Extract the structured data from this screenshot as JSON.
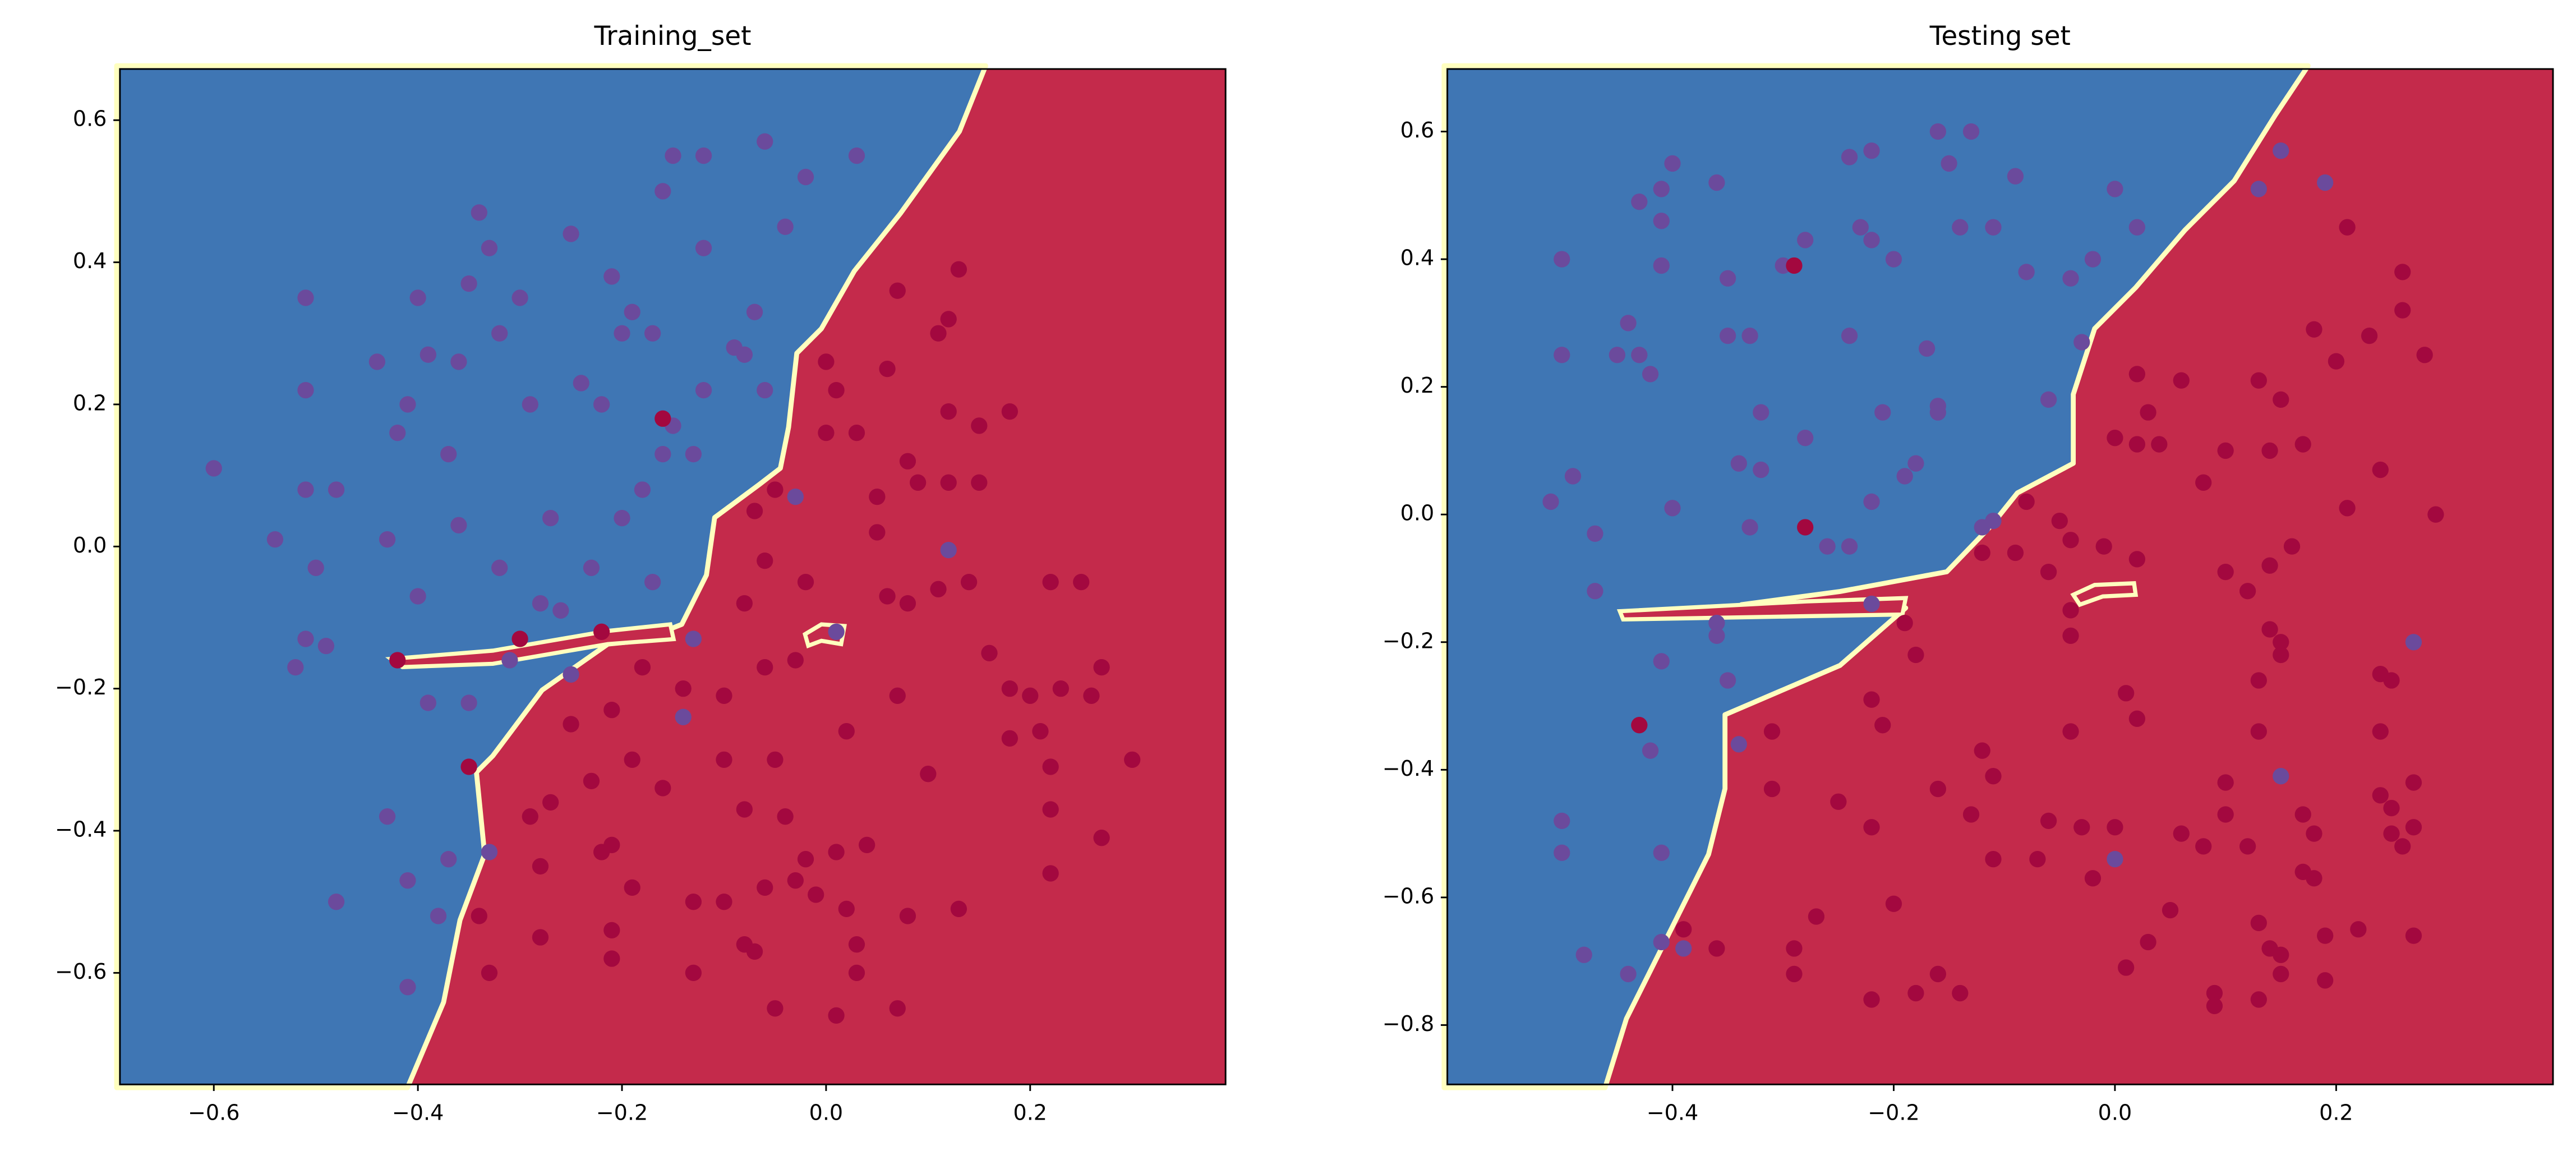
{
  "chart_data": [
    {
      "type": "scatter",
      "title": "Training_set",
      "xlim": [
        -0.692,
        0.3915
      ],
      "ylim": [
        -0.757,
        0.672
      ],
      "xticks": [
        {
          "value": -0.6,
          "label": "−0.6"
        },
        {
          "value": -0.4,
          "label": "−0.4"
        },
        {
          "value": -0.2,
          "label": "−0.2"
        },
        {
          "value": 0,
          "label": "0.0"
        },
        0.2
      ],
      "yticks": [
        {
          "value": -0.6,
          "label": "−0.6"
        },
        {
          "value": -0.4,
          "label": "−0.4"
        },
        {
          "value": -0.2,
          "label": "−0.2"
        },
        {
          "value": 0,
          "label": "0.0"
        },
        0.2,
        0.4,
        0.6
      ],
      "series": [
        {
          "color": "#6b4a9c",
          "x": [
            -0.6,
            -0.54,
            -0.52,
            -0.51,
            -0.49,
            -0.5,
            -0.51,
            -0.48,
            -0.51,
            -0.51,
            -0.43,
            -0.4,
            -0.42,
            -0.41,
            -0.4,
            -0.39,
            -0.37,
            -0.36,
            -0.35,
            -0.34,
            -0.33,
            -0.32,
            -0.3,
            -0.29,
            -0.27,
            -0.28,
            -0.26,
            -0.24,
            -0.22,
            -0.21,
            -0.2,
            -0.19,
            -0.17,
            -0.18,
            -0.16,
            -0.15,
            -0.13,
            -0.12,
            -0.09,
            -0.08,
            -0.06,
            -0.07,
            -0.06,
            -0.04,
            -0.02,
            0.03,
            -0.03,
            0.01,
            0.12,
            -0.13,
            -0.14,
            -0.33,
            -0.35,
            -0.39,
            -0.43,
            -0.41,
            -0.38,
            -0.48,
            -0.41,
            -0.37,
            -0.31,
            -0.25,
            -0.17,
            -0.2,
            -0.23,
            -0.15,
            -0.12,
            -0.16,
            -0.12,
            -0.25,
            -0.44,
            -0.36,
            -0.32
          ],
          "values": [
            0.11,
            0.01,
            -0.17,
            -0.13,
            -0.14,
            -0.03,
            0.08,
            0.08,
            0.22,
            0.35,
            0.01,
            -0.07,
            0.16,
            0.2,
            0.35,
            0.27,
            0.13,
            0.26,
            0.37,
            0.47,
            0.42,
            0.3,
            0.35,
            0.2,
            0.04,
            -0.08,
            -0.09,
            0.23,
            0.2,
            0.38,
            0.3,
            0.33,
            0.3,
            0.08,
            0.13,
            0.17,
            0.13,
            0.22,
            0.28,
            0.27,
            0.22,
            0.33,
            0.57,
            0.45,
            0.52,
            0.55,
            0.07,
            -0.12,
            -0.005,
            -0.13,
            -0.24,
            -0.43,
            -0.22,
            -0.22,
            -0.38,
            -0.47,
            -0.52,
            -0.5,
            -0.62,
            -0.44,
            -0.16,
            -0.18,
            -0.05,
            0.04,
            -0.03,
            0.55,
            0.55,
            0.5,
            0.42,
            0.44,
            0.26,
            0.03,
            -0.03
          ]
        },
        {
          "color": "#a3083f",
          "x": [
            -0.42,
            -0.3,
            -0.22,
            -0.16,
            -0.05,
            -0.35,
            0.0,
            0.07,
            0.13,
            0.12,
            0.11,
            0.06,
            0.01,
            0.03,
            0.0,
            0.08,
            0.12,
            0.15,
            0.18,
            0.15,
            0.12,
            0.09,
            0.05,
            0.05,
            0.11,
            0.08,
            0.06,
            -0.02,
            -0.07,
            -0.06,
            -0.08,
            -0.03,
            0.02,
            0.07,
            -0.05,
            -0.06,
            -0.1,
            -0.14,
            -0.18,
            -0.21,
            -0.25,
            -0.23,
            -0.27,
            -0.19,
            -0.16,
            -0.1,
            -0.08,
            -0.04,
            -0.02,
            0.01,
            0.04,
            0.1,
            0.16,
            0.18,
            0.2,
            0.21,
            0.22,
            0.23,
            0.26,
            0.27,
            0.3,
            0.25,
            0.22,
            0.14,
            0.18,
            0.22,
            0.27,
            0.22,
            0.13,
            0.08,
            0.03,
            0.02,
            -0.03,
            -0.06,
            -0.08,
            -0.1,
            -0.13,
            -0.13,
            -0.21,
            -0.22,
            -0.21,
            -0.19,
            -0.21,
            -0.28,
            -0.29,
            -0.33,
            -0.34,
            -0.28,
            -0.05,
            0.01,
            0.07,
            -0.01,
            0.03,
            -0.07
          ],
          "values": [
            -0.16,
            -0.13,
            -0.12,
            0.18,
            0.08,
            -0.31,
            0.26,
            0.36,
            0.39,
            0.32,
            0.3,
            0.25,
            0.22,
            0.16,
            0.16,
            0.12,
            0.19,
            0.17,
            0.19,
            0.09,
            0.09,
            0.09,
            0.07,
            0.02,
            -0.06,
            -0.08,
            -0.07,
            -0.05,
            0.05,
            -0.02,
            -0.08,
            -0.16,
            -0.26,
            -0.21,
            -0.3,
            -0.17,
            -0.21,
            -0.2,
            -0.17,
            -0.23,
            -0.25,
            -0.33,
            -0.36,
            -0.3,
            -0.34,
            -0.3,
            -0.37,
            -0.38,
            -0.44,
            -0.43,
            -0.42,
            -0.32,
            -0.15,
            -0.2,
            -0.21,
            -0.26,
            -0.31,
            -0.2,
            -0.21,
            -0.17,
            -0.3,
            -0.05,
            -0.05,
            -0.05,
            -0.27,
            -0.37,
            -0.41,
            -0.46,
            -0.51,
            -0.52,
            -0.56,
            -0.51,
            -0.47,
            -0.48,
            -0.56,
            -0.5,
            -0.5,
            -0.6,
            -0.42,
            -0.43,
            -0.54,
            -0.48,
            -0.58,
            -0.45,
            -0.38,
            -0.6,
            -0.52,
            -0.55,
            -0.65,
            -0.66,
            -0.65,
            -0.49,
            -0.6,
            -0.57
          ]
        }
      ]
    },
    {
      "type": "scatter",
      "title": "Testing set",
      "xlim": [
        -0.6035,
        0.396
      ],
      "ylim": [
        -0.893,
        0.698
      ],
      "xticks": [
        {
          "value": -0.4,
          "label": "−0.4"
        },
        {
          "value": -0.2,
          "label": "−0.2"
        },
        {
          "value": 0,
          "label": "0.0"
        },
        0.2
      ],
      "yticks": [
        {
          "value": -0.8,
          "label": "−0.8"
        },
        {
          "value": -0.6,
          "label": "−0.6"
        },
        {
          "value": -0.4,
          "label": "−0.4"
        },
        {
          "value": -0.2,
          "label": "−0.2"
        },
        {
          "value": 0,
          "label": "0.0"
        },
        0.2,
        0.4,
        0.6
      ],
      "series": [
        {
          "color": "#6b4a9c",
          "x": [
            -0.5,
            -0.5,
            -0.49,
            -0.51,
            -0.47,
            -0.47,
            -0.44,
            -0.45,
            -0.43,
            -0.42,
            -0.43,
            -0.41,
            -0.41,
            -0.41,
            -0.4,
            -0.36,
            -0.35,
            -0.35,
            -0.33,
            -0.32,
            -0.34,
            -0.32,
            -0.33,
            -0.3,
            -0.28,
            -0.24,
            -0.22,
            -0.23,
            -0.22,
            -0.2,
            -0.24,
            -0.28,
            -0.26,
            -0.24,
            -0.22,
            -0.19,
            -0.21,
            -0.18,
            -0.16,
            -0.16,
            -0.17,
            -0.14,
            -0.11,
            -0.15,
            -0.16,
            -0.13,
            -0.09,
            -0.08,
            -0.04,
            -0.02,
            0.0,
            0.02,
            -0.03,
            -0.06,
            -0.12,
            -0.11,
            -0.4,
            -0.41,
            -0.36,
            -0.36,
            -0.35,
            -0.34,
            -0.42,
            -0.41,
            -0.5,
            -0.5,
            -0.48,
            -0.44,
            -0.41,
            -0.39,
            -0.22,
            0.13,
            0.15,
            0.19,
            0.27,
            0.15,
            0.0
          ],
          "values": [
            0.4,
            0.25,
            0.06,
            0.02,
            -0.03,
            -0.12,
            0.3,
            0.25,
            0.25,
            0.22,
            0.49,
            0.51,
            0.46,
            0.39,
            0.55,
            0.52,
            0.37,
            0.28,
            0.28,
            0.16,
            0.08,
            0.07,
            -0.02,
            0.39,
            0.43,
            0.56,
            0.57,
            0.45,
            0.43,
            0.4,
            0.28,
            0.12,
            -0.05,
            -0.05,
            0.02,
            0.06,
            0.16,
            0.08,
            0.17,
            0.16,
            0.26,
            0.45,
            0.45,
            0.55,
            0.6,
            0.6,
            0.53,
            0.38,
            0.37,
            0.4,
            0.51,
            0.45,
            0.27,
            0.18,
            -0.02,
            -0.01,
            0.01,
            -0.23,
            -0.17,
            -0.19,
            -0.26,
            -0.36,
            -0.37,
            -0.53,
            -0.48,
            -0.53,
            -0.69,
            -0.72,
            -0.67,
            -0.68,
            -0.14,
            0.51,
            0.57,
            0.52,
            -0.2,
            -0.41,
            -0.54
          ]
        },
        {
          "color": "#a3083f",
          "x": [
            -0.29,
            -0.28,
            -0.43,
            -0.31,
            -0.31,
            0.02,
            0.06,
            0.03,
            0.0,
            0.02,
            0.04,
            0.08,
            0.13,
            0.15,
            0.17,
            0.14,
            0.18,
            0.21,
            0.23,
            0.2,
            0.26,
            0.26,
            0.28,
            0.29,
            0.21,
            0.24,
            0.1,
            0.1,
            0.12,
            0.14,
            0.16,
            0.14,
            0.15,
            0.15,
            0.13,
            0.13,
            0.1,
            0.1,
            0.12,
            0.08,
            0.06,
            0.0,
            -0.03,
            -0.02,
            0.01,
            0.05,
            0.03,
            0.09,
            0.09,
            0.13,
            0.14,
            0.15,
            0.15,
            0.13,
            0.19,
            0.19,
            0.22,
            0.17,
            0.18,
            0.17,
            0.18,
            0.24,
            0.25,
            0.24,
            0.24,
            0.25,
            0.25,
            0.26,
            0.27,
            0.27,
            0.27,
            -0.06,
            -0.04,
            -0.04,
            0.01,
            0.02,
            -0.04,
            -0.06,
            -0.07,
            -0.11,
            -0.11,
            -0.12,
            -0.13,
            -0.16,
            -0.2,
            -0.22,
            -0.18,
            -0.16,
            -0.14,
            -0.22,
            -0.21,
            -0.22,
            -0.19,
            -0.18,
            -0.25,
            -0.27,
            -0.29,
            -0.29,
            -0.36,
            -0.39,
            -0.04,
            -0.01,
            0.02,
            -0.09,
            -0.12,
            -0.08,
            -0.05
          ],
          "values": [
            0.39,
            -0.02,
            -0.33,
            -0.43,
            -0.34,
            0.22,
            0.21,
            0.16,
            0.12,
            0.11,
            0.11,
            0.05,
            0.21,
            0.18,
            0.11,
            0.1,
            0.29,
            0.45,
            0.28,
            0.24,
            0.32,
            0.38,
            0.25,
            0.0,
            0.01,
            0.07,
            0.1,
            -0.09,
            -0.12,
            -0.08,
            -0.05,
            -0.18,
            -0.2,
            -0.22,
            -0.26,
            -0.34,
            -0.42,
            -0.47,
            -0.52,
            -0.52,
            -0.5,
            -0.49,
            -0.49,
            -0.57,
            -0.71,
            -0.62,
            -0.67,
            -0.75,
            -0.77,
            -0.76,
            -0.68,
            -0.69,
            -0.72,
            -0.64,
            -0.66,
            -0.73,
            -0.65,
            -0.56,
            -0.57,
            -0.47,
            -0.5,
            -0.25,
            -0.26,
            -0.34,
            -0.44,
            -0.46,
            -0.5,
            -0.52,
            -0.49,
            -0.42,
            -0.66,
            -0.09,
            -0.15,
            -0.19,
            -0.28,
            -0.32,
            -0.34,
            -0.48,
            -0.54,
            -0.54,
            -0.41,
            -0.37,
            -0.47,
            -0.43,
            -0.61,
            -0.76,
            -0.75,
            -0.72,
            -0.75,
            -0.49,
            -0.33,
            -0.29,
            -0.17,
            -0.22,
            -0.45,
            -0.63,
            -0.68,
            -0.72,
            -0.68,
            -0.65,
            -0.04,
            -0.05,
            -0.07,
            -0.06,
            -0.06,
            0.02,
            -0.01
          ]
        }
      ]
    }
  ]
}
